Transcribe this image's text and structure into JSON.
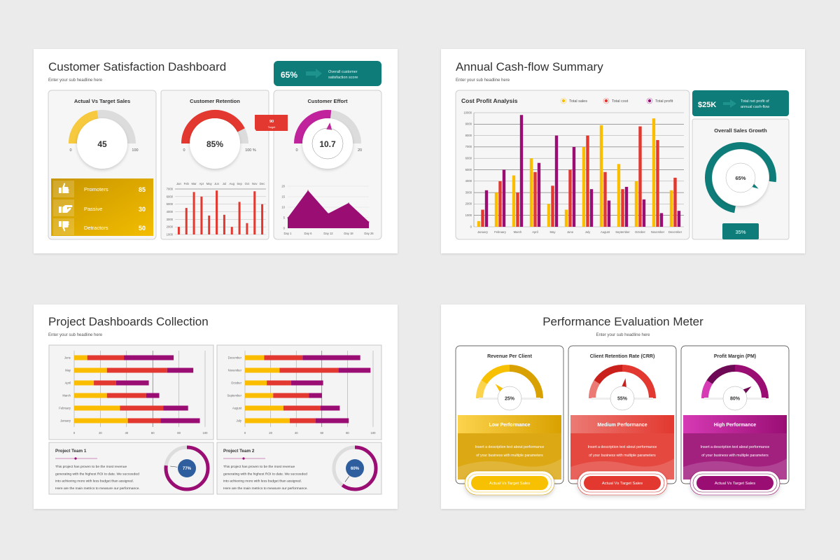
{
  "colors": {
    "teal": "#0e7c78",
    "yellow": "#fbbd00",
    "red": "#e2382f",
    "magenta": "#9a0e74",
    "blue": "#2f5e9e",
    "gray_track": "#dcdcdc"
  },
  "satisfaction": {
    "title": "Customer Satisfaction Dashboard",
    "subtitle": "Enter your sub headline here",
    "score": {
      "value": "65%",
      "line1": "Overall customer",
      "line2": "satisfaction score",
      "icon": "arrow-right-icon"
    },
    "sales_gauge": {
      "title": "Actual Vs Target Sales",
      "value": "45",
      "min": "0",
      "max": "100",
      "fraction": 0.45
    },
    "nps": [
      {
        "label": "Promoters",
        "value": "85",
        "icon": "thumbs-up-icon"
      },
      {
        "label": "Passive",
        "value": "30",
        "icon": "hand-point-icon"
      },
      {
        "label": "Detractors",
        "value": "50",
        "icon": "thumbs-down-icon"
      }
    ],
    "retention": {
      "title": "Customer Retention",
      "value": "85%",
      "min": "0",
      "max": "100 %",
      "fraction": 0.85,
      "target_value": "90",
      "target_label": "Target"
    },
    "effort": {
      "title": "Customer Effort",
      "value": "10.7",
      "min": "0",
      "max": "20",
      "fraction": 0.535
    }
  },
  "cashflow": {
    "title": "Annual Cash-flow Summary",
    "subtitle": "Enter your sub headline here",
    "net_profit": {
      "value": "$25K",
      "line1": "Total net profit of",
      "line2": "annual cash-flow",
      "icon": "arrow-right-icon"
    },
    "growth": {
      "title": "Overall Sales Growth",
      "value": "65%",
      "fraction": 0.65,
      "remaining": "35%"
    }
  },
  "projects": {
    "title": "Project Dashboards Collection",
    "subtitle": "Enter your sub headline here",
    "teams": [
      {
        "title": "Project Team 1",
        "lines": [
          "This project has proven to be the most revenue",
          "generating with the highest ROI to date. We succeeded",
          "into achieving more with less budget than assigned.",
          "Here are the main metrics to measure our performance."
        ],
        "value": "77%",
        "fraction": 0.77
      },
      {
        "title": "Project Team 2",
        "lines": [
          "This project has proven to be the most revenue",
          "generating with the highest ROI to date. We succeeded",
          "into achieving more with less budget than assigned.",
          "Here are the main metrics to measure our performance."
        ],
        "value": "60%",
        "fraction": 0.6
      }
    ]
  },
  "performance": {
    "title": "Performance Evaluation Meter",
    "subtitle": "Enter your sub headline here",
    "cards": [
      {
        "title": "Revenue Per Client",
        "value": "25%",
        "fraction": 0.25,
        "level": "Low Performance",
        "desc1": "Insert a description text about performance",
        "desc2": "of your business with multiple parameters",
        "button": "Actual Vs Target Sales",
        "colors": [
          "#fcd34d",
          "#f7c000",
          "#d9a100"
        ]
      },
      {
        "title": "Client Retention Rate (CRR)",
        "value": "55%",
        "fraction": 0.55,
        "level": "Medium Performance",
        "desc1": "Insert a description text about performance",
        "desc2": "of your business with multiple parameters",
        "button": "Actual Vs Target Sales",
        "colors": [
          "#ec7a74",
          "#c9201c",
          "#e2382f"
        ]
      },
      {
        "title": "Profit Margin (PM)",
        "value": "80%",
        "fraction": 0.8,
        "level": "High Performance",
        "desc1": "Insert a description text about performance",
        "desc2": "of your business with multiple parameters",
        "button": "Actual Vs Target Sales",
        "colors": [
          "#d63ab5",
          "#6e0a55",
          "#9a0e74"
        ]
      }
    ]
  },
  "chart_data": [
    {
      "id": "retention-bars",
      "type": "bar",
      "categories": [
        "Jan",
        "Feb",
        "Mar",
        "Apr",
        "May",
        "Jun",
        "Jul",
        "Aug",
        "Sep",
        "Oct",
        "Nov",
        "Dec"
      ],
      "values": [
        2000,
        4500,
        6600,
        6000,
        3500,
        6800,
        3600,
        2000,
        5300,
        2500,
        6700,
        5000
      ],
      "ylim": [
        1000,
        7000
      ],
      "yticks": [
        "1000",
        "2000",
        "3000",
        "4000",
        "5000",
        "6000",
        "7000"
      ],
      "grid": true,
      "color": "#e2382f"
    },
    {
      "id": "effort-area",
      "type": "area",
      "categories": [
        "Day 1",
        "Day 6",
        "Day 12",
        "Day 18",
        "Day 26"
      ],
      "values": [
        5,
        18,
        7,
        12,
        3
      ],
      "ylim": [
        0,
        20
      ],
      "yticks": [
        "0",
        "5",
        "10",
        "15",
        "20"
      ],
      "grid": true,
      "color": "#9a0e74"
    },
    {
      "id": "cost-profit",
      "type": "bar",
      "title": "Cost Profit Analysis",
      "categories": [
        "January",
        "February",
        "March",
        "April",
        "May",
        "June",
        "July",
        "August",
        "September",
        "October",
        "November",
        "December"
      ],
      "series": [
        {
          "name": "Total sales",
          "color": "#fbbd00",
          "values": [
            500,
            3000,
            4500,
            6000,
            2000,
            1500,
            7000,
            8900,
            5500,
            4000,
            9500,
            3200
          ]
        },
        {
          "name": "Total cost",
          "color": "#e2382f",
          "values": [
            1500,
            4000,
            3000,
            4800,
            3600,
            5000,
            8000,
            4800,
            3300,
            8800,
            7600,
            4300
          ]
        },
        {
          "name": "Total profit",
          "color": "#9a0e74",
          "values": [
            3200,
            5000,
            9800,
            5600,
            8000,
            7000,
            3300,
            2300,
            3500,
            2400,
            1200,
            1400
          ]
        }
      ],
      "ylim": [
        0,
        10000
      ],
      "yticks": [
        "0",
        "1000",
        "2000",
        "3000",
        "4000",
        "5000",
        "6000",
        "7000",
        "8000",
        "9000",
        "10000"
      ],
      "grid": true,
      "legend": "top-right"
    },
    {
      "id": "projects-h1",
      "type": "bar",
      "orientation": "horizontal",
      "stacked": true,
      "categories": [
        "June",
        "May",
        "April",
        "March",
        "February",
        "January"
      ],
      "series": [
        {
          "color": "#fbbd00",
          "values": [
            10,
            25,
            15,
            25,
            35,
            41
          ]
        },
        {
          "color": "#e2382f",
          "values": [
            28,
            46,
            17,
            30,
            33,
            25
          ]
        },
        {
          "color": "#9a0e74",
          "values": [
            38,
            20,
            25,
            10,
            19,
            30
          ]
        }
      ],
      "xlim": [
        0,
        100
      ],
      "xticks": [
        "0",
        "20",
        "40",
        "60",
        "80",
        "100"
      ],
      "grid": true
    },
    {
      "id": "projects-h2",
      "type": "bar",
      "orientation": "horizontal",
      "stacked": true,
      "categories": [
        "December",
        "November",
        "October",
        "September",
        "August",
        "July"
      ],
      "series": [
        {
          "color": "#fbbd00",
          "values": [
            15,
            27,
            17,
            22,
            30,
            35
          ]
        },
        {
          "color": "#e2382f",
          "values": [
            30,
            46,
            19,
            28,
            29,
            20
          ]
        },
        {
          "color": "#9a0e74",
          "values": [
            45,
            25,
            25,
            10,
            15,
            26
          ]
        }
      ],
      "xlim": [
        0,
        100
      ],
      "xticks": [
        "0",
        "20",
        "40",
        "60",
        "80",
        "100"
      ],
      "grid": true
    }
  ]
}
